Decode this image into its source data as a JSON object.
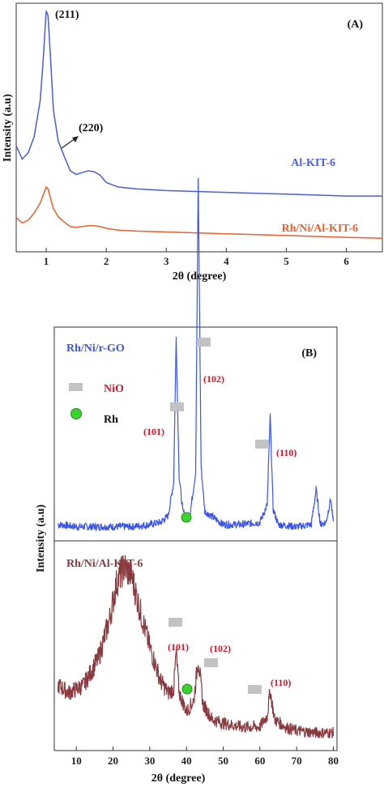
{
  "colors": {
    "al_kit6": "#4a5fd6",
    "rh_ni_al_kit6_A": "#e8602c",
    "rh_ni_rgo": "#3b55e6",
    "rh_ni_al_kit6_B": "#8a3a3e",
    "nio_marker": "#c3c3c3",
    "rh_marker": "#39d42e",
    "peak_label": "#d0182a"
  },
  "chart_data": [
    {
      "type": "line",
      "panel": "(A)",
      "xlabel": "2θ (degree)",
      "ylabel": "Intensity (a.u)",
      "xlim": [
        0.5,
        6.6
      ],
      "x_ticks": [
        "1",
        "2",
        "3",
        "4",
        "5",
        "6"
      ],
      "x_tick_values": [
        1,
        2,
        3,
        4,
        5,
        6
      ],
      "series": [
        {
          "name": "Al-KIT-6",
          "x": [
            0.5,
            0.6,
            0.7,
            0.8,
            0.9,
            0.95,
            1.0,
            1.03,
            1.07,
            1.12,
            1.2,
            1.3,
            1.4,
            1.5,
            1.6,
            1.7,
            1.8,
            1.9,
            2.0,
            2.2,
            2.5,
            3.0,
            3.5,
            4.0,
            4.5,
            5.0,
            5.5,
            6.0,
            6.6
          ],
          "values": [
            1.1,
            0.95,
            1.02,
            1.2,
            1.6,
            2.05,
            2.6,
            2.55,
            2.1,
            1.5,
            1.15,
            0.98,
            0.82,
            0.78,
            0.8,
            0.82,
            0.81,
            0.77,
            0.69,
            0.64,
            0.62,
            0.6,
            0.59,
            0.58,
            0.57,
            0.56,
            0.55,
            0.54,
            0.54
          ]
        },
        {
          "name": "Rh/Ni/Al-KIT-6",
          "x": [
            0.5,
            0.6,
            0.7,
            0.8,
            0.9,
            0.95,
            1.0,
            1.03,
            1.07,
            1.12,
            1.2,
            1.3,
            1.4,
            1.5,
            1.6,
            1.7,
            1.8,
            1.9,
            2.0,
            2.2,
            2.5,
            3.0,
            3.5,
            4.0,
            4.5,
            5.0,
            5.5,
            6.0,
            6.6
          ],
          "values": [
            0.3,
            0.24,
            0.27,
            0.35,
            0.46,
            0.55,
            0.64,
            0.62,
            0.52,
            0.4,
            0.31,
            0.25,
            0.2,
            0.19,
            0.2,
            0.21,
            0.21,
            0.2,
            0.18,
            0.16,
            0.15,
            0.14,
            0.13,
            0.12,
            0.11,
            0.1,
            0.09,
            0.08,
            0.07
          ]
        }
      ],
      "annotations": [
        "(211)",
        "(220)"
      ]
    },
    {
      "type": "line",
      "panel": "(B)",
      "xlabel": "2θ (degree)",
      "ylabel": "Intensity (a.u)",
      "xlim": [
        4,
        81
      ],
      "x_ticks": [
        "10",
        "20",
        "30",
        "40",
        "50",
        "60",
        "70",
        "80"
      ],
      "x_tick_values": [
        10,
        20,
        30,
        40,
        50,
        60,
        70,
        80
      ],
      "legend": [
        {
          "marker": "rect",
          "label": "NiO"
        },
        {
          "marker": "circle",
          "label": "Rh"
        }
      ],
      "series": [
        {
          "name": "Rh/Ni/r-GO",
          "x": [
            5,
            10,
            15,
            20,
            25,
            30,
            33,
            35,
            36.5,
            37.2,
            38,
            39,
            40,
            41,
            42.5,
            43.2,
            44,
            45,
            50,
            55,
            60,
            62,
            62.8,
            63.6,
            65,
            70,
            74,
            75.3,
            76.5,
            78,
            79.3,
            80
          ],
          "values": [
            0.06,
            0.05,
            0.05,
            0.05,
            0.05,
            0.06,
            0.07,
            0.1,
            0.25,
            0.92,
            0.28,
            0.12,
            0.1,
            0.11,
            0.3,
            1.65,
            0.32,
            0.12,
            0.06,
            0.06,
            0.07,
            0.15,
            0.56,
            0.13,
            0.06,
            0.05,
            0.06,
            0.22,
            0.06,
            0.07,
            0.18,
            0.06
          ]
        },
        {
          "name": "Rh/Ni/Al-KIT-6",
          "x": [
            5,
            8,
            12,
            16,
            19,
            21,
            23,
            25,
            27,
            30,
            33,
            35,
            36.5,
            37.2,
            38,
            40,
            42,
            43.2,
            44.5,
            47,
            50,
            55,
            60,
            62,
            62.8,
            64,
            67,
            70,
            75,
            80
          ],
          "values": [
            0.28,
            0.24,
            0.28,
            0.42,
            0.62,
            0.82,
            0.9,
            0.86,
            0.7,
            0.48,
            0.3,
            0.24,
            0.26,
            0.45,
            0.24,
            0.14,
            0.2,
            0.42,
            0.18,
            0.1,
            0.08,
            0.06,
            0.06,
            0.12,
            0.25,
            0.1,
            0.06,
            0.04,
            0.03,
            0.03
          ]
        }
      ],
      "peak_labels": {
        "top": [
          "(101)",
          "(102)",
          "(110)"
        ],
        "bottom": [
          "(101)",
          "(102)",
          "(110)"
        ]
      }
    }
  ]
}
